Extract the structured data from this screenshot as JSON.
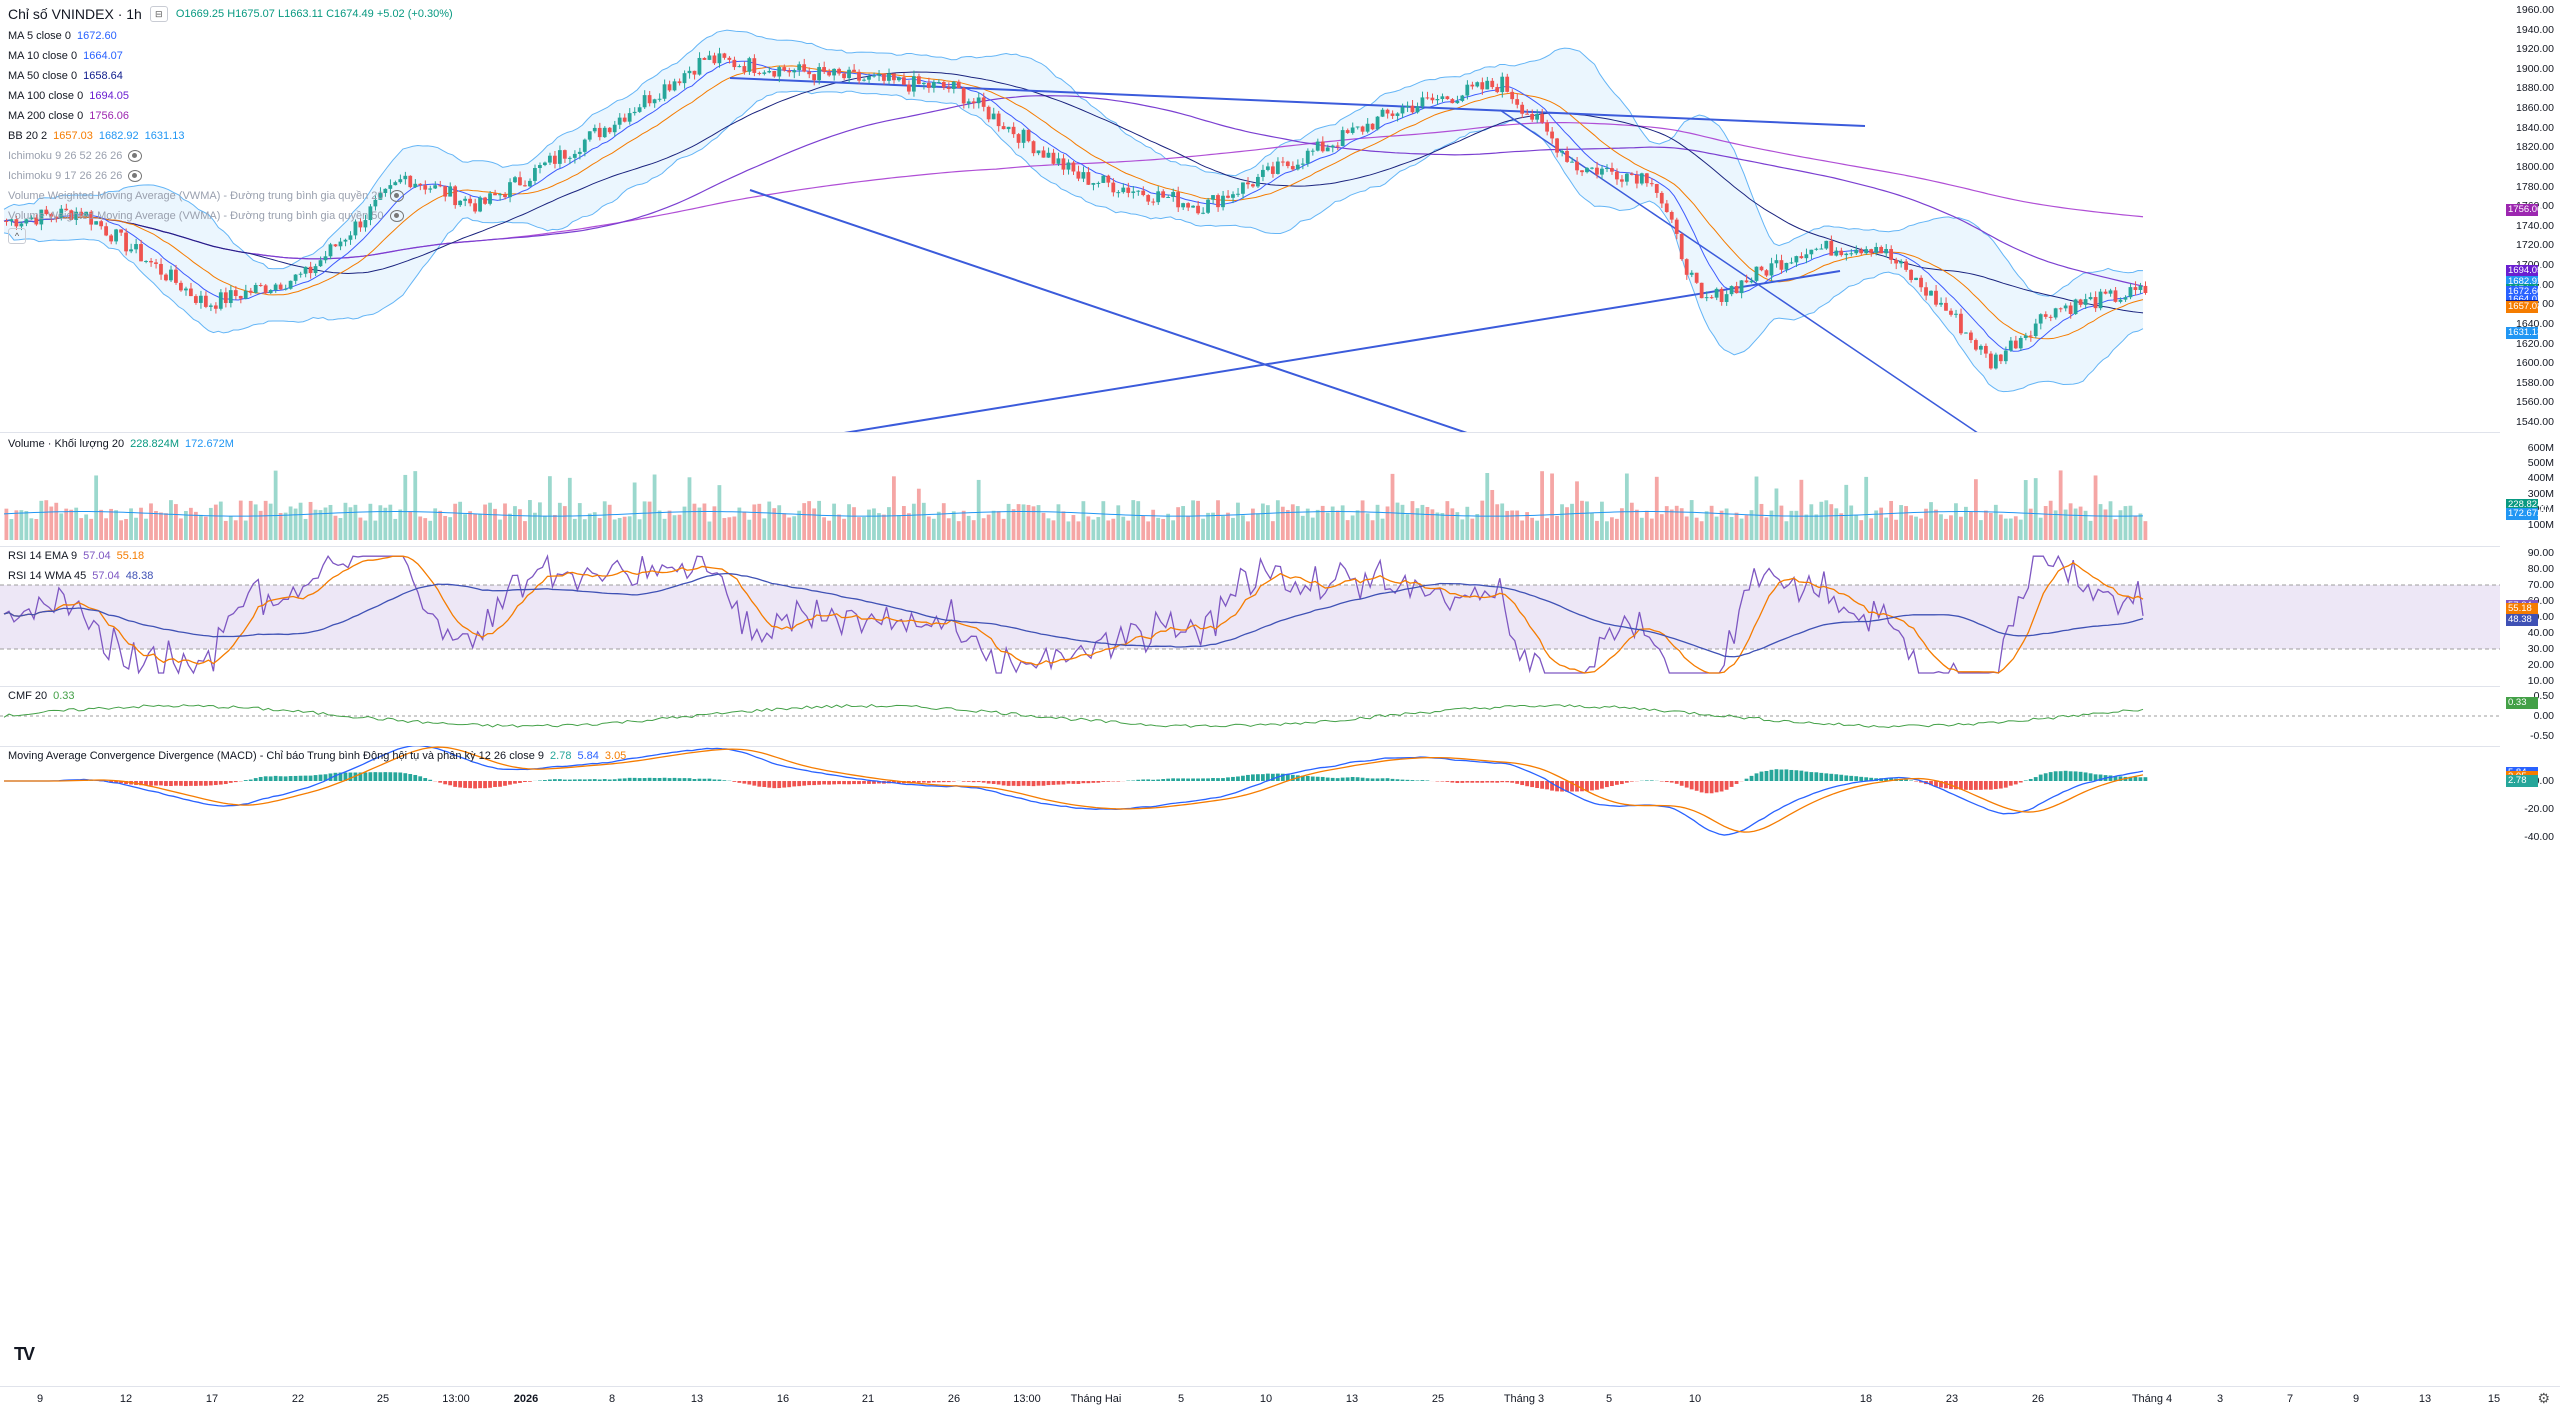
{
  "header": {
    "symbol": "Chỉ số VNINDEX · 1h",
    "ohlc": "O1669.25  H1675.07  L1663.11  C1674.49  +5.02 (+0.30%)"
  },
  "price_legend": [
    {
      "label": "MA 5 close 0",
      "values": [
        "1672.60"
      ],
      "colors": [
        "#2962ff"
      ]
    },
    {
      "label": "MA 10 close 0",
      "values": [
        "1664.07"
      ],
      "colors": [
        "#2962ff"
      ]
    },
    {
      "label": "MA 50 close 0",
      "values": [
        "1658.64"
      ],
      "colors": [
        "#0d1b8c"
      ]
    },
    {
      "label": "MA 100 close 0",
      "values": [
        "1694.05"
      ],
      "colors": [
        "#6a1fd1"
      ]
    },
    {
      "label": "MA 200 close 0",
      "values": [
        "1756.06"
      ],
      "colors": [
        "#9c27b0"
      ]
    },
    {
      "label": "BB 20 2",
      "values": [
        "1657.03",
        "1682.92",
        "1631.13"
      ],
      "colors": [
        "#f57c00",
        "#2196f3",
        "#2196f3"
      ]
    },
    {
      "label": "Ichimoku 9 26 52 26 26",
      "values": [],
      "dim": true,
      "eye": true
    },
    {
      "label": "Ichimoku 9 17 26 26 26",
      "values": [],
      "dim": true,
      "eye": true
    },
    {
      "label": "Volume Weighted Moving Average (VWMA) - Đường trung bình gia quyền 20",
      "values": [],
      "dim": true,
      "eye": true
    },
    {
      "label": "Volume Weighted Moving Average (VWMA) - Đường trung bình gia quyền 50",
      "values": [],
      "dim": true,
      "eye": true
    }
  ],
  "price_axis": [
    "1960.00",
    "1940.00",
    "1920.00",
    "1900.00",
    "1880.00",
    "1860.00",
    "1840.00",
    "1820.00",
    "1800.00",
    "1780.00",
    "1760.00",
    "1740.00",
    "1720.00",
    "1700.00",
    "1680.00",
    "1660.00",
    "1640.00",
    "1620.00",
    "1600.00",
    "1580.00",
    "1560.00",
    "1540.00"
  ],
  "price_tags": [
    {
      "value": "1756.06",
      "color": "#9c27b0"
    },
    {
      "value": "1694.05",
      "color": "#6a1fd1"
    },
    {
      "value": "1682.92",
      "color": "#2196f3"
    },
    {
      "value": "1674.49",
      "color": "#089981"
    },
    {
      "value": "1672.60",
      "color": "#2962ff"
    },
    {
      "value": "1664.07",
      "color": "#2962ff"
    },
    {
      "value": "1658.64",
      "color": "#0d1b8c"
    },
    {
      "value": "1657.03",
      "color": "#f57c00"
    },
    {
      "value": "1631.13",
      "color": "#2196f3"
    }
  ],
  "volume": {
    "label": "Volume · Khối lượng 20",
    "values": [
      "228.824M",
      "172.672M"
    ],
    "colors": [
      "#089981",
      "#2196f3"
    ],
    "axis": [
      "600M",
      "500M",
      "400M",
      "300M",
      "200M",
      "100M"
    ],
    "tags": [
      {
        "value": "228.824M",
        "color": "#089981"
      },
      {
        "value": "172.672M",
        "color": "#2196f3"
      }
    ]
  },
  "rsi": {
    "line1": {
      "label": "RSI 14 EMA 9",
      "values": [
        "57.04",
        "55.18"
      ],
      "colors": [
        "#7e57c2",
        "#f57c00"
      ]
    },
    "line2": {
      "label": "RSI 14 WMA 45",
      "values": [
        "57.04",
        "48.38"
      ],
      "colors": [
        "#7e57c2",
        "#3f51b5"
      ]
    },
    "axis": [
      "90.00",
      "80.00",
      "70.00",
      "60.00",
      "50.00",
      "40.00",
      "30.00",
      "20.00",
      "10.00"
    ],
    "tags": [
      {
        "value": "57.04",
        "color": "#7e57c2"
      },
      {
        "value": "57.04",
        "color": "#7e57c2"
      },
      {
        "value": "55.18",
        "color": "#f57c00"
      },
      {
        "value": "48.38",
        "color": "#3f51b5"
      }
    ],
    "band": {
      "upper": 70,
      "lower": 30
    }
  },
  "cmf": {
    "label": "CMF 20",
    "value": "0.33",
    "color": "#43a047",
    "axis": [
      "0.50",
      "0.00",
      "-0.50"
    ],
    "tag": "0.33"
  },
  "macd": {
    "label": "Moving Average Convergence Divergence (MACD) - Chỉ báo Trung bình Động hội tụ và phân kỳ 12 26 close 9",
    "values": [
      "2.78",
      "5.84",
      "3.05"
    ],
    "colors": [
      "#26a69a",
      "#2962ff",
      "#f57c00"
    ],
    "axis": [
      "0.00",
      "-20.00",
      "-40.00"
    ],
    "tags": [
      {
        "value": "5.84",
        "color": "#2962ff"
      },
      {
        "value": "3.05",
        "color": "#f57c00"
      },
      {
        "value": "2.78",
        "color": "#26a69a"
      }
    ]
  },
  "time_axis": [
    "9",
    "12",
    "17",
    "22",
    "25",
    "13:00",
    "2026",
    "8",
    "13",
    "16",
    "21",
    "26",
    "13:00",
    "Tháng Hai",
    "5",
    "10",
    "13",
    "25",
    "Tháng 3",
    "5",
    "10",
    "18",
    "23",
    "26",
    "Tháng 4",
    "3",
    "7",
    "9",
    "13",
    "15"
  ],
  "logo": "TV",
  "colors": {
    "up": "#26a69a",
    "down": "#ef5350",
    "trend": "#3b5bdb",
    "bb_fill": "#e3f2fd"
  }
}
